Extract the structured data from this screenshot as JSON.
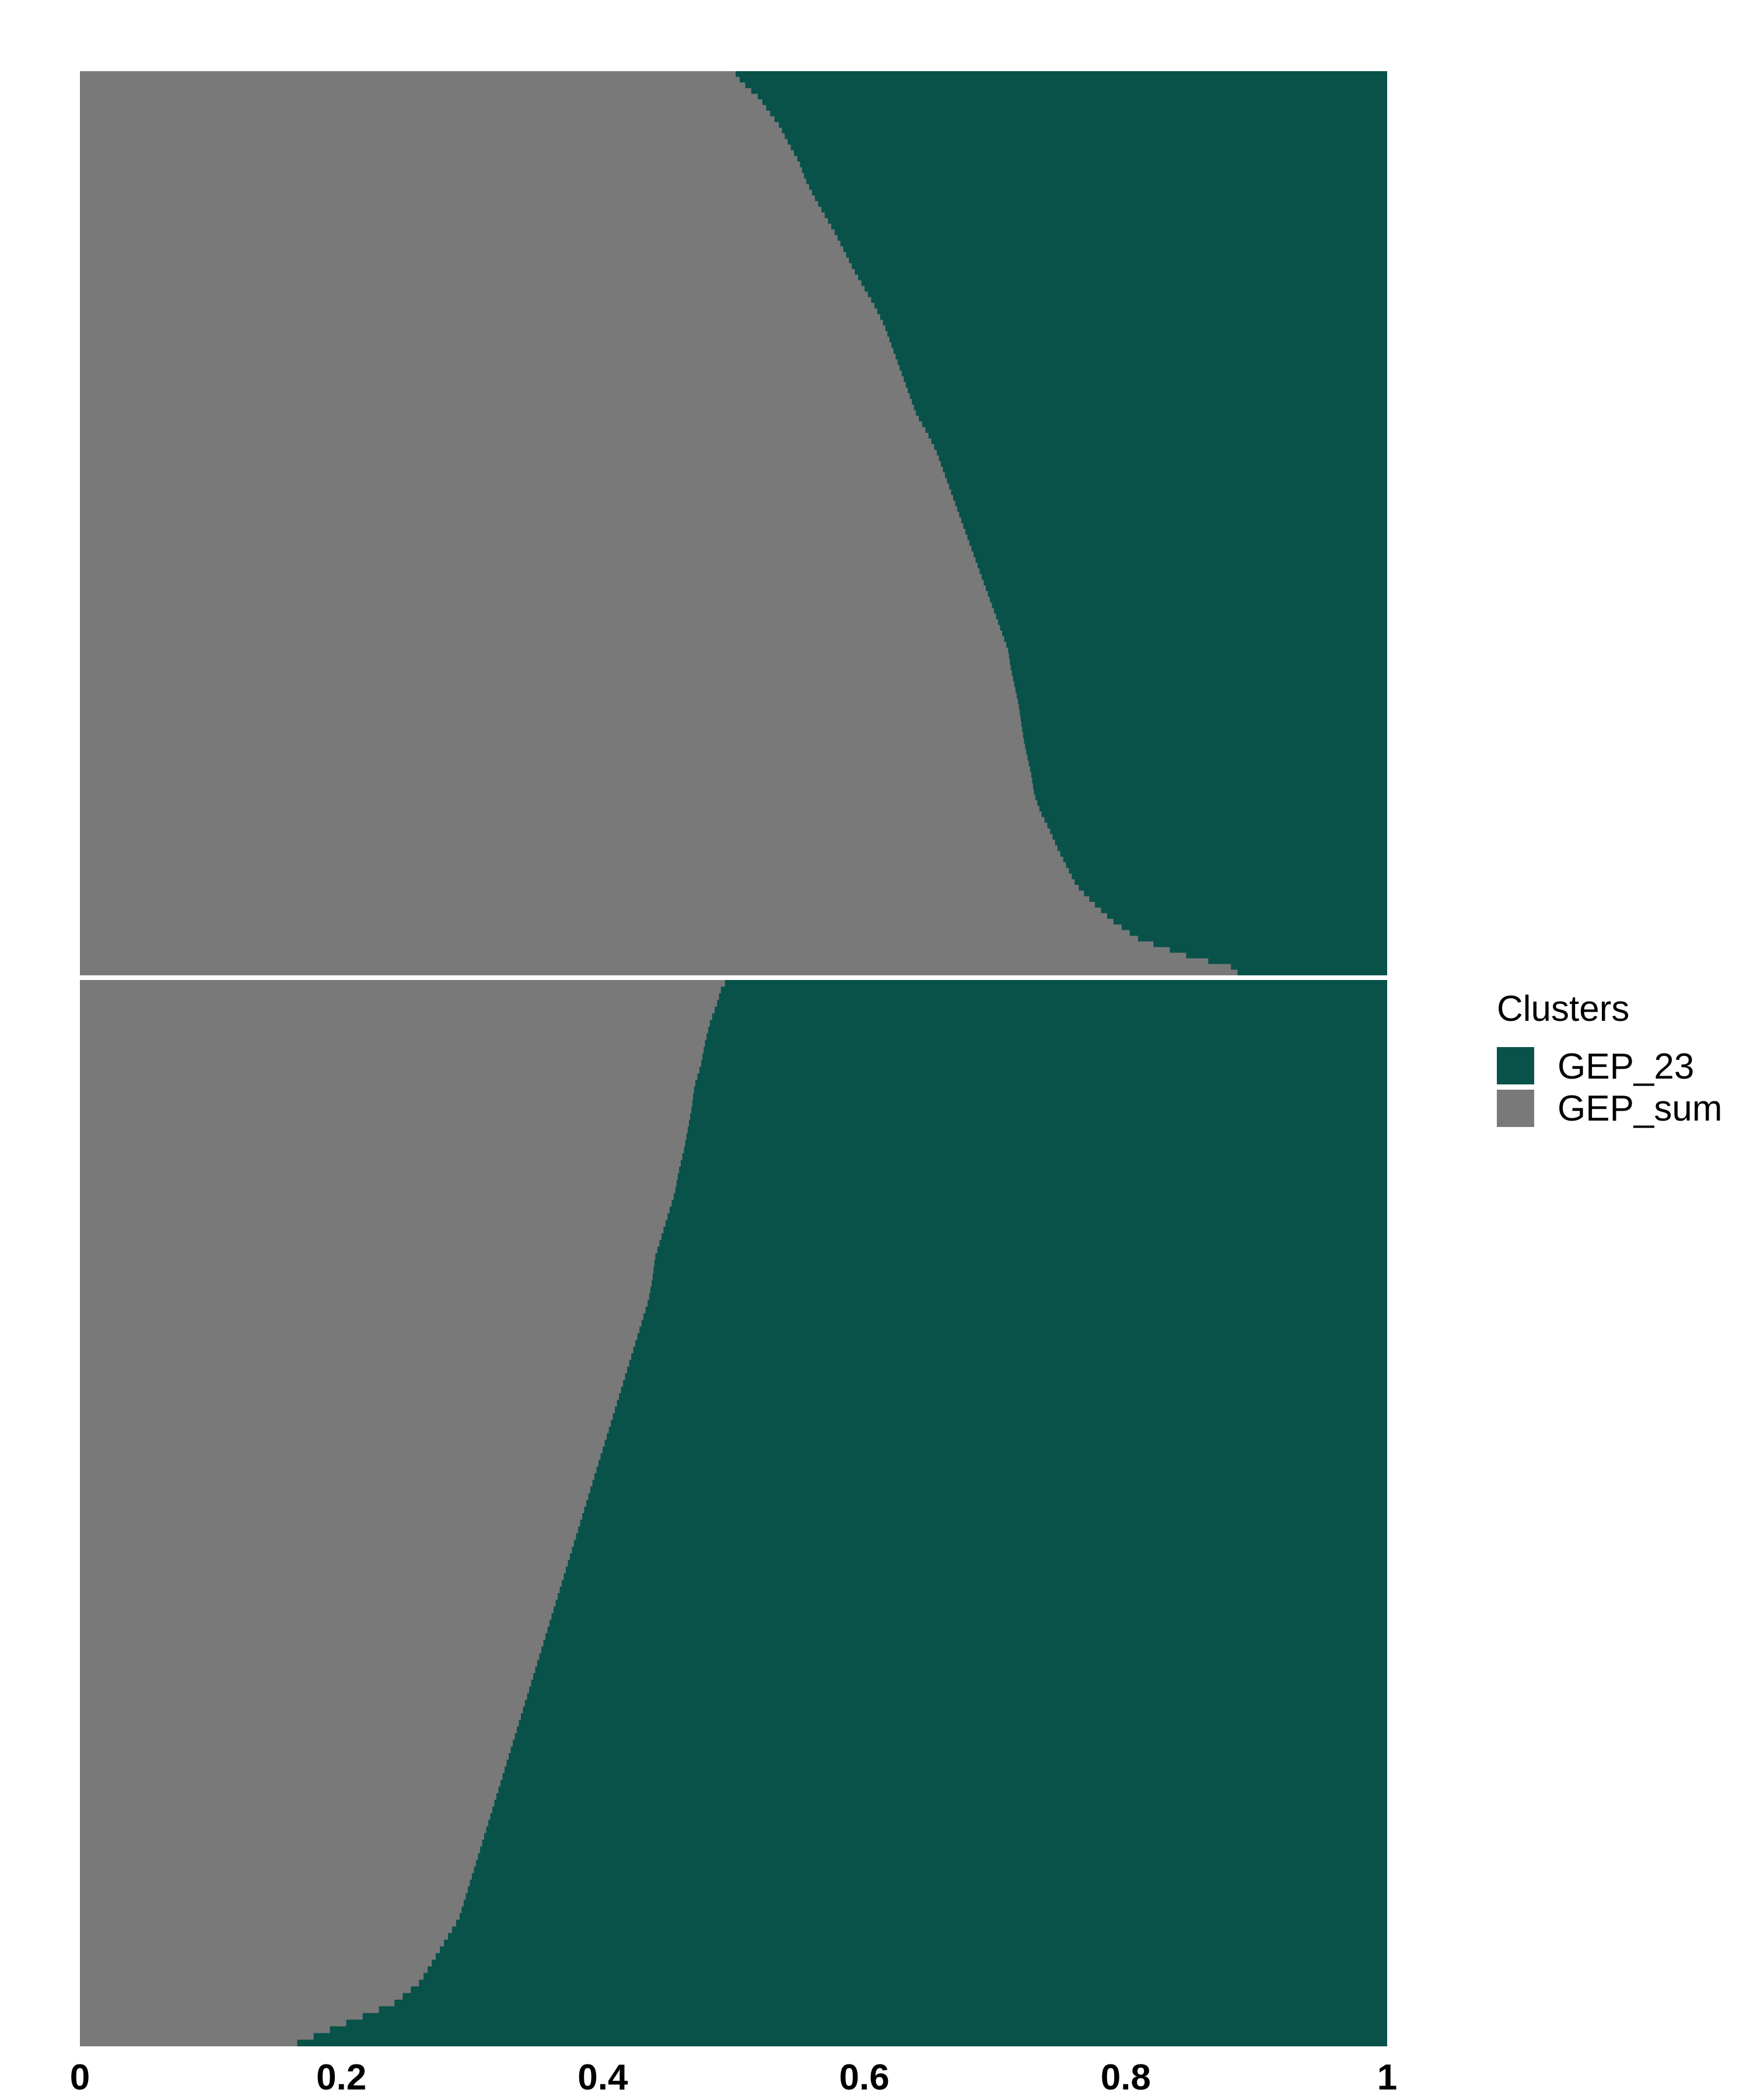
{
  "chart_data": {
    "type": "bar",
    "orientation": "horizontal-stacked-proportion",
    "xlim": [
      0,
      1
    ],
    "x_ticks": [
      {
        "value": 0,
        "label": "0"
      },
      {
        "value": 0.2,
        "label": "0.2"
      },
      {
        "value": 0.4,
        "label": "0.4"
      },
      {
        "value": 0.6,
        "label": "0.6"
      },
      {
        "value": 0.8,
        "label": "0.8"
      },
      {
        "value": 1,
        "label": "1"
      }
    ],
    "legend": {
      "title": "Clusters",
      "placement": "right",
      "entries": [
        {
          "label": "GEP_23",
          "color": "#08524A"
        },
        {
          "label": "GEP_sum",
          "color": "#797979"
        }
      ]
    },
    "colors": {
      "GEP_23": "#08524A",
      "GEP_sum": "#797979",
      "separator": "#ffffff"
    },
    "grid": false,
    "panels": [
      {
        "series_name": "GEP_sum",
        "boundary_profile": [
          [
            0.0,
            0.5
          ],
          [
            0.01,
            0.505
          ],
          [
            0.02,
            0.512
          ],
          [
            0.03,
            0.52
          ],
          [
            0.045,
            0.527
          ],
          [
            0.06,
            0.535
          ],
          [
            0.08,
            0.542
          ],
          [
            0.1,
            0.55
          ],
          [
            0.12,
            0.555
          ],
          [
            0.14,
            0.562
          ],
          [
            0.16,
            0.57
          ],
          [
            0.18,
            0.578
          ],
          [
            0.2,
            0.585
          ],
          [
            0.22,
            0.592
          ],
          [
            0.24,
            0.6
          ],
          [
            0.26,
            0.608
          ],
          [
            0.28,
            0.615
          ],
          [
            0.3,
            0.62
          ],
          [
            0.32,
            0.625
          ],
          [
            0.34,
            0.63
          ],
          [
            0.36,
            0.635
          ],
          [
            0.38,
            0.64
          ],
          [
            0.4,
            0.648
          ],
          [
            0.42,
            0.655
          ],
          [
            0.44,
            0.66
          ],
          [
            0.46,
            0.665
          ],
          [
            0.48,
            0.67
          ],
          [
            0.5,
            0.675
          ],
          [
            0.52,
            0.68
          ],
          [
            0.54,
            0.685
          ],
          [
            0.56,
            0.69
          ],
          [
            0.58,
            0.695
          ],
          [
            0.6,
            0.7
          ],
          [
            0.62,
            0.705
          ],
          [
            0.64,
            0.71
          ],
          [
            0.66,
            0.712
          ],
          [
            0.68,
            0.715
          ],
          [
            0.7,
            0.718
          ],
          [
            0.72,
            0.72
          ],
          [
            0.74,
            0.722
          ],
          [
            0.76,
            0.725
          ],
          [
            0.78,
            0.728
          ],
          [
            0.8,
            0.73
          ],
          [
            0.82,
            0.735
          ],
          [
            0.84,
            0.742
          ],
          [
            0.86,
            0.748
          ],
          [
            0.88,
            0.755
          ],
          [
            0.9,
            0.762
          ],
          [
            0.92,
            0.775
          ],
          [
            0.94,
            0.79
          ],
          [
            0.96,
            0.81
          ],
          [
            0.97,
            0.83
          ],
          [
            0.98,
            0.85
          ],
          [
            0.99,
            0.88
          ],
          [
            1.0,
            0.888
          ]
        ]
      },
      {
        "series_name": "GEP_sum",
        "boundary_profile": [
          [
            0.0,
            0.495
          ],
          [
            0.01,
            0.49
          ],
          [
            0.02,
            0.488
          ],
          [
            0.03,
            0.485
          ],
          [
            0.04,
            0.482
          ],
          [
            0.06,
            0.478
          ],
          [
            0.08,
            0.475
          ],
          [
            0.1,
            0.47
          ],
          [
            0.12,
            0.468
          ],
          [
            0.14,
            0.465
          ],
          [
            0.16,
            0.462
          ],
          [
            0.18,
            0.458
          ],
          [
            0.2,
            0.455
          ],
          [
            0.22,
            0.45
          ],
          [
            0.24,
            0.445
          ],
          [
            0.26,
            0.44
          ],
          [
            0.28,
            0.438
          ],
          [
            0.3,
            0.435
          ],
          [
            0.32,
            0.43
          ],
          [
            0.34,
            0.425
          ],
          [
            0.36,
            0.42
          ],
          [
            0.38,
            0.415
          ],
          [
            0.4,
            0.41
          ],
          [
            0.42,
            0.405
          ],
          [
            0.44,
            0.4
          ],
          [
            0.46,
            0.395
          ],
          [
            0.48,
            0.39
          ],
          [
            0.5,
            0.385
          ],
          [
            0.52,
            0.38
          ],
          [
            0.54,
            0.375
          ],
          [
            0.56,
            0.37
          ],
          [
            0.58,
            0.365
          ],
          [
            0.6,
            0.36
          ],
          [
            0.62,
            0.355
          ],
          [
            0.64,
            0.35
          ],
          [
            0.66,
            0.345
          ],
          [
            0.68,
            0.34
          ],
          [
            0.7,
            0.335
          ],
          [
            0.72,
            0.33
          ],
          [
            0.74,
            0.325
          ],
          [
            0.76,
            0.32
          ],
          [
            0.78,
            0.315
          ],
          [
            0.8,
            0.31
          ],
          [
            0.82,
            0.305
          ],
          [
            0.84,
            0.3
          ],
          [
            0.86,
            0.295
          ],
          [
            0.88,
            0.29
          ],
          [
            0.9,
            0.28
          ],
          [
            0.92,
            0.27
          ],
          [
            0.94,
            0.26
          ],
          [
            0.96,
            0.24
          ],
          [
            0.98,
            0.2
          ],
          [
            0.99,
            0.18
          ],
          [
            1.0,
            0.16
          ]
        ]
      }
    ]
  }
}
